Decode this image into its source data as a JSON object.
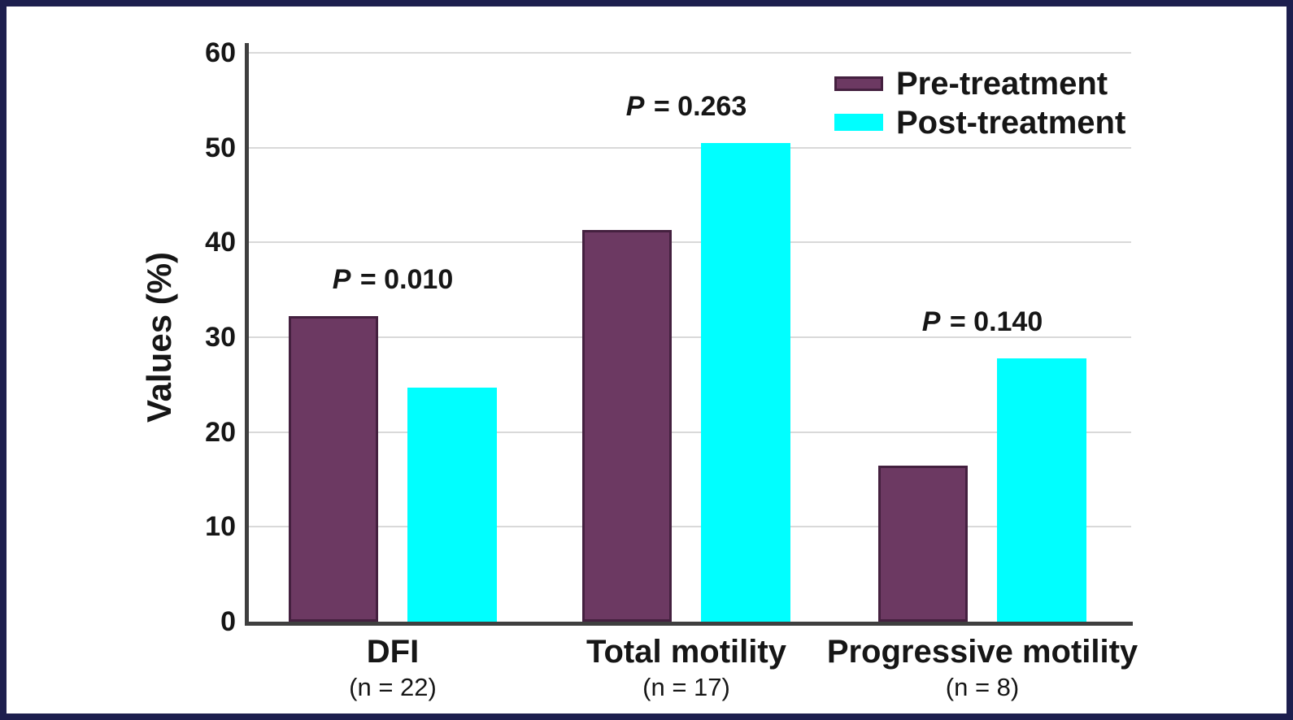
{
  "frame": {
    "border_color": "#1d1f4e",
    "panel_background": "#ffffff"
  },
  "chart_data": {
    "type": "bar",
    "title": "",
    "xlabel": "",
    "ylabel": "Values (%)",
    "ylim": [
      0,
      60
    ],
    "ytick_step": 10,
    "yticks": [
      0,
      10,
      20,
      30,
      40,
      50,
      60
    ],
    "grid": true,
    "legend_position": "top-right",
    "categories": [
      "DFI",
      "Total motility",
      "Progressive motility"
    ],
    "category_sublabels": [
      "(n = 22)",
      "(n = 17)",
      "(n = 8)"
    ],
    "group_annotations": [
      "P = 0.010",
      "P = 0.263",
      "P = 0.140"
    ],
    "series": [
      {
        "name": "Pre-treatment",
        "color": "#6c3962",
        "border_color": "#44203f",
        "values": [
          32.2,
          41.3,
          16.5
        ]
      },
      {
        "name": "Post-treatment",
        "color": "#00ffff",
        "border_color": "#00ffff",
        "values": [
          24.7,
          50.5,
          27.8
        ]
      }
    ],
    "axis_color": "#3f3f3f",
    "gridline_color": "#d9d9d9",
    "text_color": "#161616"
  }
}
